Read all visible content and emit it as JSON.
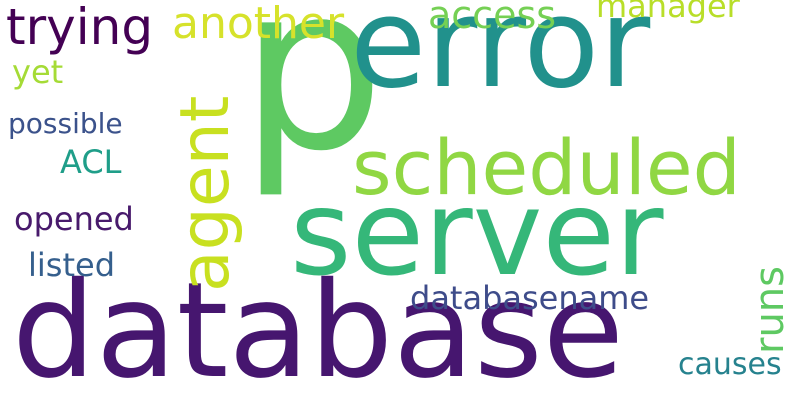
{
  "words": {
    "p": "p",
    "error": "error",
    "server": "server",
    "database": "database",
    "scheduled": "scheduled",
    "agent": "agent",
    "trying": "trying",
    "another": "another",
    "access": "access",
    "manager": "manager",
    "yet": "yet",
    "possible": "possible",
    "acl": "ACL",
    "opened": "opened",
    "listed": "listed",
    "databasename": "databasename",
    "runs": "runs",
    "causes": "causes"
  },
  "colors": {
    "p": "#5ec962",
    "error": "#21918c",
    "server": "#35b779",
    "database": "#46166f",
    "scheduled": "#90d743",
    "agent": "#c8e020",
    "trying": "#440154",
    "another": "#d6e22b",
    "access": "#75d054",
    "manager": "#b8de29",
    "yet": "#a5db36",
    "possible": "#3b528b",
    "acl": "#1f9e89",
    "opened": "#481a6c",
    "listed": "#355f8d",
    "databasename": "#3e4c8a",
    "runs": "#5ec962",
    "causes": "#26828e"
  }
}
